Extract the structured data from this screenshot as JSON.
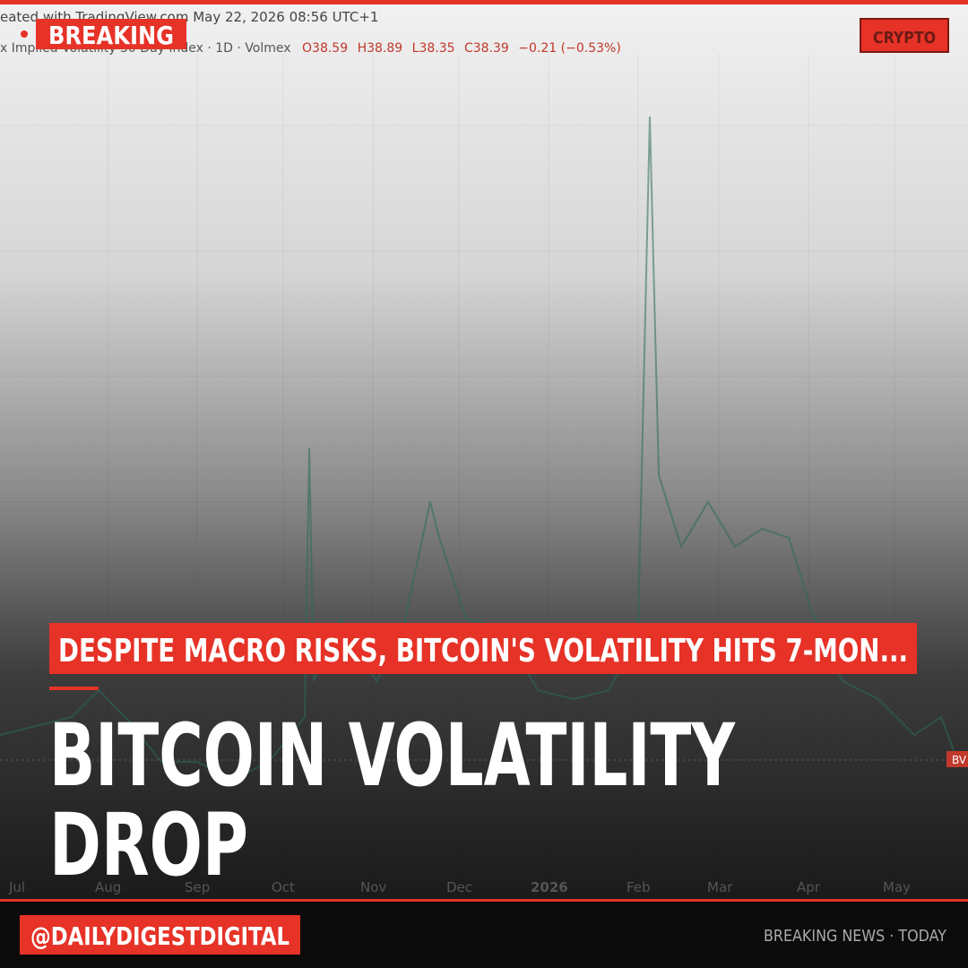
{
  "header": {
    "source_line": "eated with TradingView.com  May 22, 2026 08:56 UTC+1",
    "symbol_line": "x Implied Volatility 30 Day Index · 1D · Volmex",
    "ohlc": {
      "open": "O38.59",
      "high": "H38.89",
      "low": "L38.35",
      "close": "C38.39",
      "change": "−0.21 (−0.53%)"
    },
    "badge": "BREAKING",
    "tag": "CRYPTO"
  },
  "chart_axis": {
    "months": [
      "Jul",
      "Aug",
      "Sep",
      "Oct",
      "Nov",
      "Dec",
      "2026",
      "Feb",
      "Mar",
      "Apr",
      "May"
    ],
    "price_label": "BV"
  },
  "headline": "DESPITE MACRO RISKS, BITCOIN'S VOLATILITY HITS 7-MON...",
  "title": {
    "lines": [
      "BITCOIN VOLATILITY",
      "DROP"
    ]
  },
  "footer": {
    "handle": "@DAILYDIGESTDIGITAL",
    "note": "BREAKING NEWS · TODAY"
  }
}
